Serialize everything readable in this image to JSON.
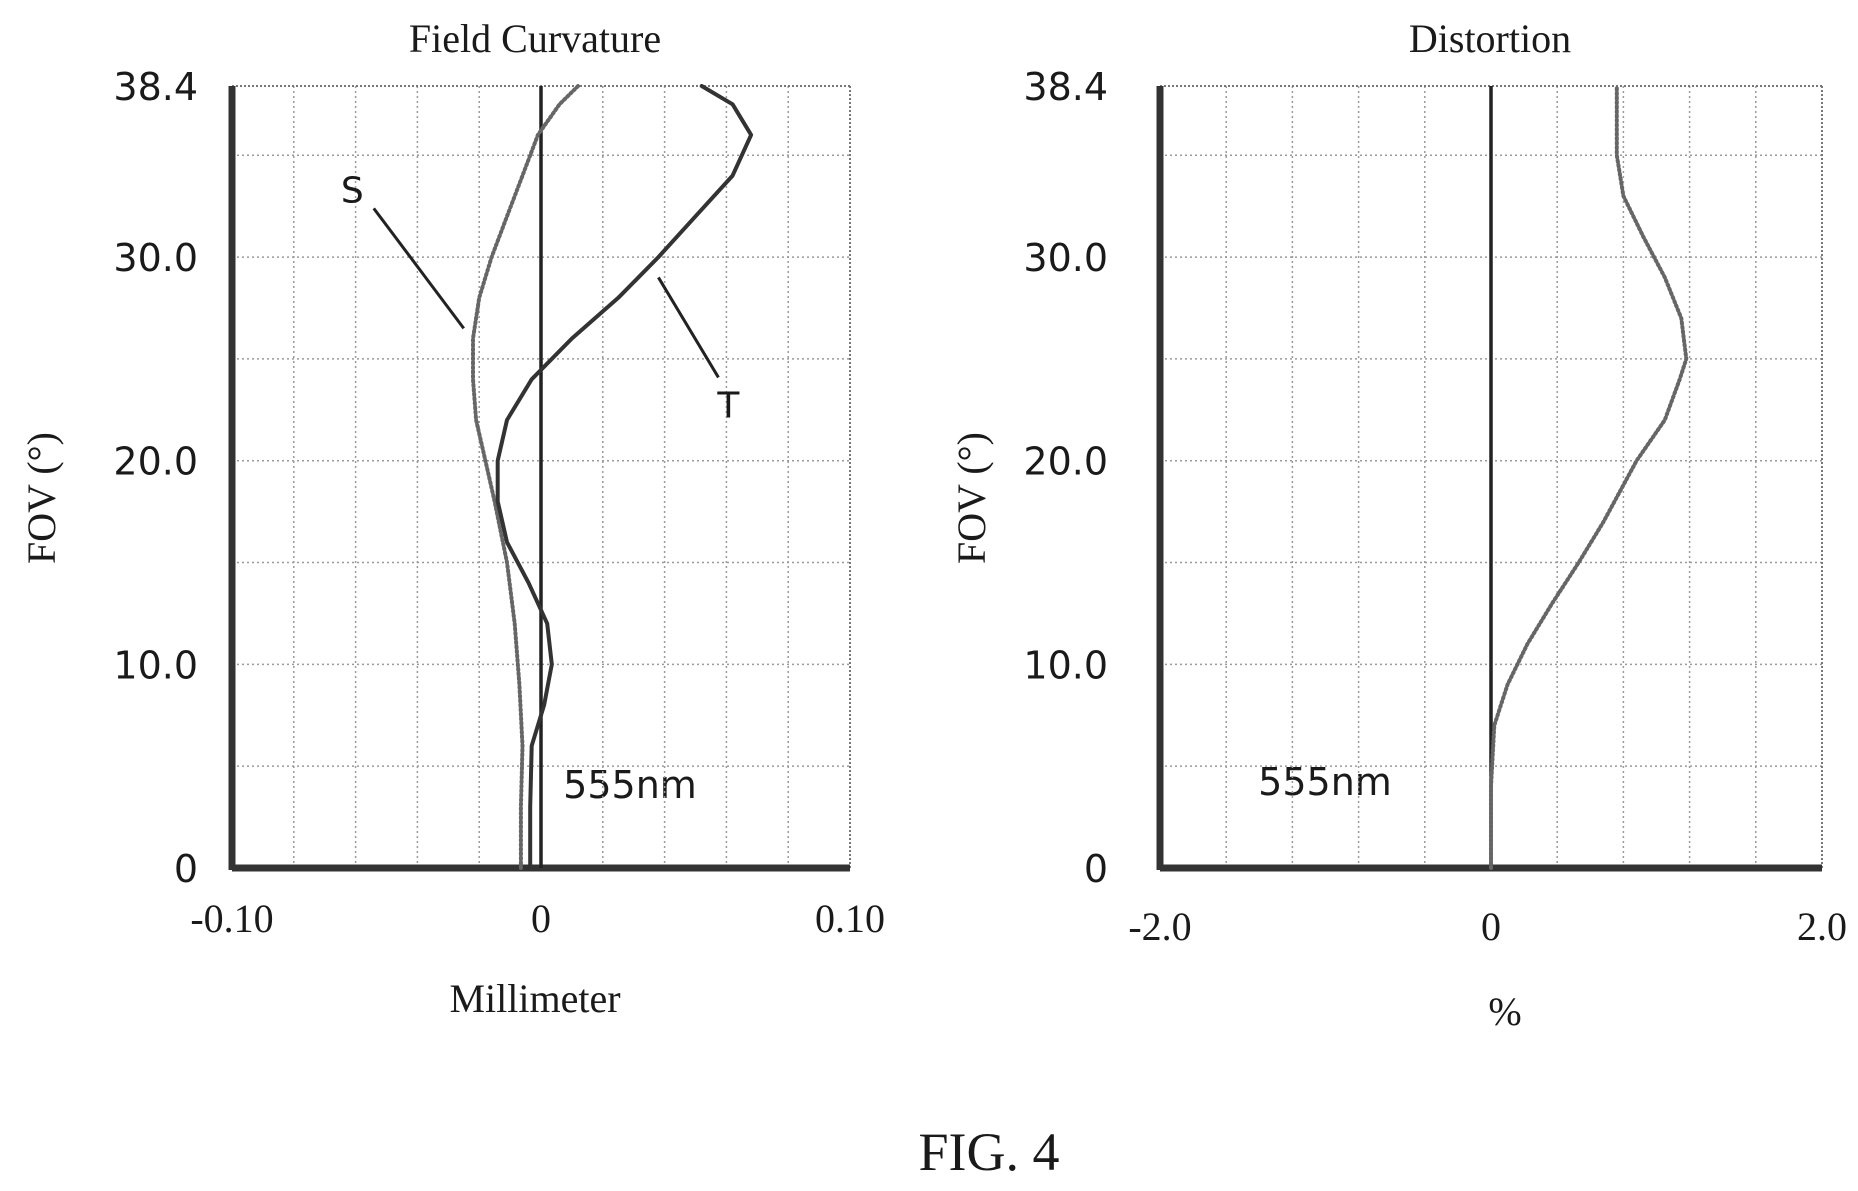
{
  "figure_label": "FIG. 4",
  "chart_data": [
    {
      "type": "line",
      "title": "Field Curvature",
      "xlabel": "Millimeter",
      "ylabel": "FOV (°)",
      "xlim": [
        -0.1,
        0.1
      ],
      "ylim": [
        0,
        38.4
      ],
      "x_tick_labels": [
        "-0.10",
        "0",
        "0.10"
      ],
      "x_tick_values": [
        -0.1,
        0,
        0.1
      ],
      "y_tick_labels": [
        "0",
        "10.0",
        "20.0",
        "30.0",
        "38.4"
      ],
      "y_tick_values": [
        0,
        10.0,
        20.0,
        30.0,
        38.4
      ],
      "grid": true,
      "grid_x_step": 0.02,
      "grid_y_step": 5,
      "annotation": "555nm",
      "series": [
        {
          "name": "S",
          "style": "dotted",
          "points": [
            [
              -0.0065,
              0
            ],
            [
              -0.0065,
              3
            ],
            [
              -0.006,
              6
            ],
            [
              -0.007,
              9
            ],
            [
              -0.0085,
              12
            ],
            [
              -0.011,
              15
            ],
            [
              -0.015,
              18
            ],
            [
              -0.018,
              20
            ],
            [
              -0.021,
              22
            ],
            [
              -0.022,
              24
            ],
            [
              -0.022,
              26
            ],
            [
              -0.02,
              28
            ],
            [
              -0.016,
              30
            ],
            [
              -0.011,
              32
            ],
            [
              -0.006,
              34
            ],
            [
              -0.001,
              36
            ],
            [
              0.006,
              37.5
            ],
            [
              0.012,
              38.4
            ]
          ],
          "label_at": [
            -0.025,
            26.5
          ]
        },
        {
          "name": "T",
          "style": "solid",
          "points": [
            [
              -0.0035,
              0
            ],
            [
              -0.0035,
              3
            ],
            [
              -0.003,
              6
            ],
            [
              0.001,
              8
            ],
            [
              0.0035,
              10
            ],
            [
              0.002,
              12
            ],
            [
              -0.004,
              14
            ],
            [
              -0.011,
              16
            ],
            [
              -0.014,
              18
            ],
            [
              -0.014,
              20
            ],
            [
              -0.011,
              22
            ],
            [
              -0.003,
              24
            ],
            [
              0.01,
              26
            ],
            [
              0.025,
              28
            ],
            [
              0.038,
              30
            ],
            [
              0.05,
              32
            ],
            [
              0.062,
              34
            ],
            [
              0.068,
              36
            ],
            [
              0.062,
              37.5
            ],
            [
              0.052,
              38.4
            ]
          ],
          "label_at": [
            0.038,
            29
          ]
        }
      ]
    },
    {
      "type": "line",
      "title": "Distortion",
      "xlabel": "%",
      "ylabel": "FOV (°)",
      "xlim": [
        -2.0,
        2.0
      ],
      "ylim": [
        0,
        38.4
      ],
      "x_tick_labels": [
        "-2.0",
        "0",
        "2.0"
      ],
      "x_tick_values": [
        -2.0,
        0,
        2.0
      ],
      "y_tick_labels": [
        "0",
        "10.0",
        "20.0",
        "30.0",
        "38.4"
      ],
      "y_tick_values": [
        0,
        10.0,
        20.0,
        30.0,
        38.4
      ],
      "grid": true,
      "grid_x_step": 0.4,
      "grid_y_step": 5,
      "annotation": "555nm",
      "series": [
        {
          "name": "",
          "style": "dotted",
          "points": [
            [
              0,
              0
            ],
            [
              0,
              4
            ],
            [
              0.02,
              7
            ],
            [
              0.1,
              9
            ],
            [
              0.22,
              11
            ],
            [
              0.37,
              13
            ],
            [
              0.53,
              15
            ],
            [
              0.68,
              17
            ],
            [
              0.88,
              20
            ],
            [
              1.05,
              22
            ],
            [
              1.14,
              24
            ],
            [
              1.18,
              25
            ],
            [
              1.15,
              27
            ],
            [
              1.05,
              29
            ],
            [
              0.92,
              31
            ],
            [
              0.8,
              33
            ],
            [
              0.76,
              35
            ],
            [
              0.76,
              37
            ],
            [
              0.76,
              38.4
            ]
          ]
        }
      ]
    }
  ]
}
